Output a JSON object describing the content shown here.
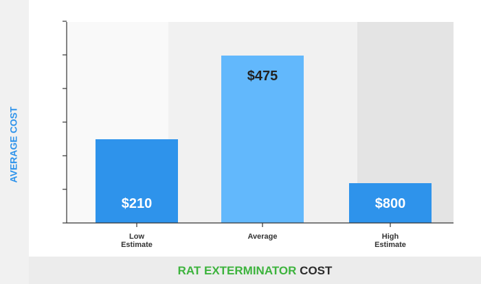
{
  "chart_data": {
    "type": "bar",
    "categories": [
      "Low Estimate",
      "Average",
      "High Estimate"
    ],
    "category_lines": [
      [
        "Low",
        "Estimate"
      ],
      [
        "Average"
      ],
      [
        "High",
        "Estimate"
      ]
    ],
    "values": [
      210,
      475,
      800
    ],
    "value_labels": [
      "$210",
      "$475",
      "$800"
    ],
    "title_parts": [
      {
        "text": "RAT EXTERMINATOR",
        "color": "#3db33d"
      },
      {
        "text": " COST",
        "color": "#2b2b2b"
      }
    ],
    "xlabel": "",
    "ylabel": "AVERAGE COST",
    "grid": false,
    "colors": {
      "bar_low": "#2e93eb",
      "bar_avg": "#62b8fc",
      "bar_high": "#2e93eb",
      "axis": "#333333",
      "ylabel": "#2e93eb",
      "value_label_light": "#ffffff",
      "value_label_dark": "#222222",
      "band_1": "#f9f9f9",
      "band_2": "#f1f1f1",
      "band_3": "#e4e4e4",
      "title_bar_bg": "#ececec",
      "left_panel_bg": "#f1f1f1"
    }
  }
}
